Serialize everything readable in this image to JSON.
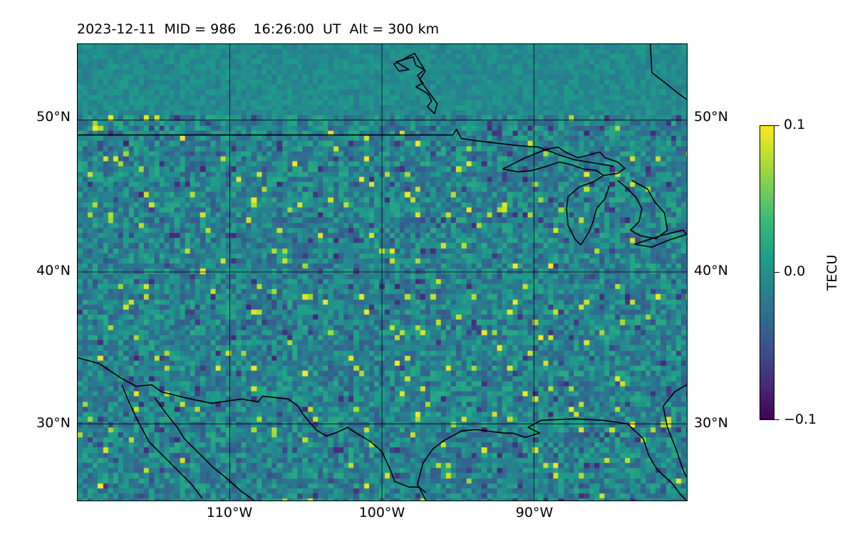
{
  "title": "2023-12-11  MID = 986    16:26:00  UT  Alt = 300 km",
  "map": {
    "lat_ticks": [
      "50°N",
      "40°N",
      "30°N"
    ],
    "lon_ticks": [
      "110°W",
      "100°W",
      "90°W"
    ],
    "field": "TEC perturbation",
    "colormap": "viridis"
  },
  "colorbar": {
    "label": "TECU",
    "ticks": [
      "0.1",
      "0.0",
      "−0.1"
    ],
    "min": -0.1,
    "max": 0.1
  }
}
